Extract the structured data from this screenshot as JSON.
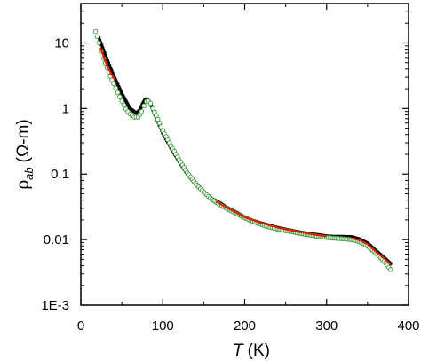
{
  "chart_data": {
    "type": "scatter",
    "xlabel": "T",
    "xunit": "(K)",
    "ylabel_main": "ρ",
    "ylabel_sub": "ab",
    "ylabel_unit": "(Ω-m)",
    "xlim": [
      0,
      400
    ],
    "ylim": [
      0.001,
      40
    ],
    "yscale": "log",
    "grid": false,
    "x_ticks": [
      0,
      100,
      200,
      300,
      400
    ],
    "x_tick_labels": [
      "0",
      "100",
      "200",
      "300",
      "400"
    ],
    "y_ticks": [
      0.001,
      0.01,
      0.1,
      1,
      10
    ],
    "y_tick_labels": [
      "1E-3",
      "0.01",
      "0.1",
      "1",
      "10"
    ],
    "series": [
      {
        "marker": "filled-circle",
        "color": "#000000",
        "x": [
          22,
          30,
          40,
          50,
          60,
          68,
          72,
          75,
          78,
          80,
          82,
          85,
          88,
          92,
          96,
          100,
          110,
          120,
          130,
          140,
          150,
          160,
          170,
          180,
          190,
          200,
          210,
          220,
          230,
          240,
          250,
          260,
          270,
          280,
          290,
          300,
          310,
          320,
          330,
          340,
          350,
          360,
          370,
          378
        ],
        "y": [
          12,
          6.5,
          3.2,
          1.7,
          1.0,
          0.85,
          0.95,
          1.15,
          1.35,
          1.4,
          1.35,
          1.2,
          0.95,
          0.72,
          0.55,
          0.42,
          0.25,
          0.155,
          0.1,
          0.07,
          0.052,
          0.042,
          0.036,
          0.03,
          0.026,
          0.022,
          0.0195,
          0.0178,
          0.0164,
          0.0152,
          0.0143,
          0.0135,
          0.0128,
          0.0122,
          0.0118,
          0.0113,
          0.0111,
          0.0111,
          0.011,
          0.0102,
          0.0088,
          0.0068,
          0.0053,
          0.0043
        ]
      },
      {
        "marker": "open-circle",
        "color": "#3a9a3a",
        "x": [
          18,
          20,
          22,
          25,
          28,
          32,
          36,
          40,
          45,
          50,
          55,
          60,
          65,
          70,
          74,
          77,
          80,
          82,
          85,
          88,
          92,
          96,
          100,
          110,
          120,
          130,
          140,
          150,
          160,
          170,
          180,
          190,
          200,
          210,
          220,
          230,
          240,
          250,
          260,
          270,
          280,
          290,
          300,
          310,
          320,
          330,
          340,
          350,
          360,
          370,
          378
        ],
        "y": [
          15,
          12.5,
          10,
          7.5,
          5.8,
          4.2,
          3.1,
          2.4,
          1.75,
          1.3,
          0.98,
          0.82,
          0.74,
          0.74,
          0.9,
          1.1,
          1.28,
          1.3,
          1.2,
          1.0,
          0.78,
          0.6,
          0.46,
          0.27,
          0.165,
          0.105,
          0.072,
          0.053,
          0.041,
          0.034,
          0.029,
          0.025,
          0.0215,
          0.019,
          0.017,
          0.0156,
          0.0145,
          0.0137,
          0.013,
          0.0123,
          0.0117,
          0.0112,
          0.0108,
          0.0105,
          0.0103,
          0.01,
          0.0093,
          0.008,
          0.0062,
          0.0047,
          0.0035
        ]
      },
      {
        "marker": "line",
        "color": "#dd2200",
        "segments": [
          {
            "x": [
              24,
              30,
              36,
              42
            ],
            "y": [
              8.5,
              5.2,
              3.6,
              2.7
            ]
          },
          {
            "x": [
              165,
              180,
              200,
              220,
              240,
              260,
              280,
              300
            ],
            "y": [
              0.038,
              0.03,
              0.022,
              0.018,
              0.0153,
              0.0136,
              0.0122,
              0.0112
            ]
          },
          {
            "x": [
              330,
              340,
              350,
              360,
              370,
              378
            ],
            "y": [
              0.0105,
              0.0098,
              0.0085,
              0.0066,
              0.0052,
              0.0042
            ]
          }
        ]
      }
    ]
  }
}
